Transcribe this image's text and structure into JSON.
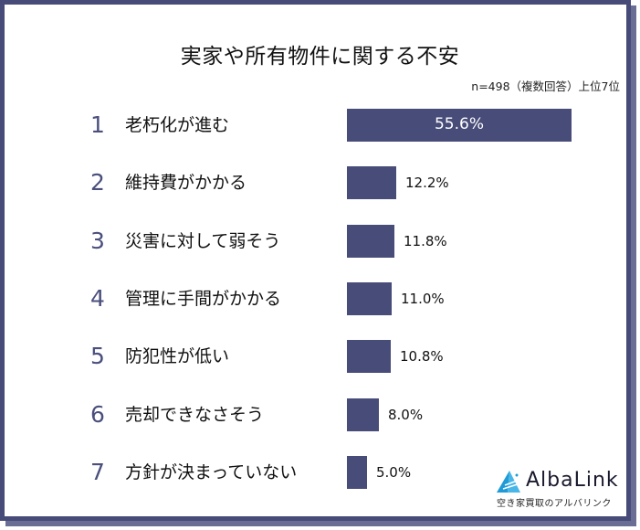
{
  "title": "実家や所有物件に関する不安",
  "subtitle": "n=498（複数回答）上位7位",
  "colors": {
    "bar": "#484c78",
    "frame": "#474b78",
    "rank": "#4a4f7c"
  },
  "items": [
    {
      "rank": "1",
      "label": "老朽化が進む",
      "value": "55.6%"
    },
    {
      "rank": "2",
      "label": "維持費がかかる",
      "value": "12.2%"
    },
    {
      "rank": "3",
      "label": "災害に対して弱そう",
      "value": "11.8%"
    },
    {
      "rank": "4",
      "label": "管理に手間がかかる",
      "value": "11.0%"
    },
    {
      "rank": "5",
      "label": "防犯性が低い",
      "value": "10.8%"
    },
    {
      "rank": "6",
      "label": "売却できなさそう",
      "value": "8.0%"
    },
    {
      "rank": "7",
      "label": "方針が決まっていない",
      "value": "5.0%"
    }
  ],
  "logo": {
    "name": "AlbaLink",
    "tagline": "空き家買取のアルバリンク"
  },
  "chart_data": {
    "type": "bar",
    "orientation": "horizontal",
    "title": "実家や所有物件に関する不安",
    "subtitle": "n=498（複数回答）上位7位",
    "categories": [
      "老朽化が進む",
      "維持費がかかる",
      "災害に対して弱そう",
      "管理に手間がかかる",
      "防犯性が低い",
      "売却できなさそう",
      "方針が決まっていない"
    ],
    "values": [
      55.6,
      12.2,
      11.8,
      11.0,
      10.8,
      8.0,
      5.0
    ],
    "unit": "%",
    "xlabel": "",
    "ylabel": "",
    "grid": false,
    "legend": null
  }
}
